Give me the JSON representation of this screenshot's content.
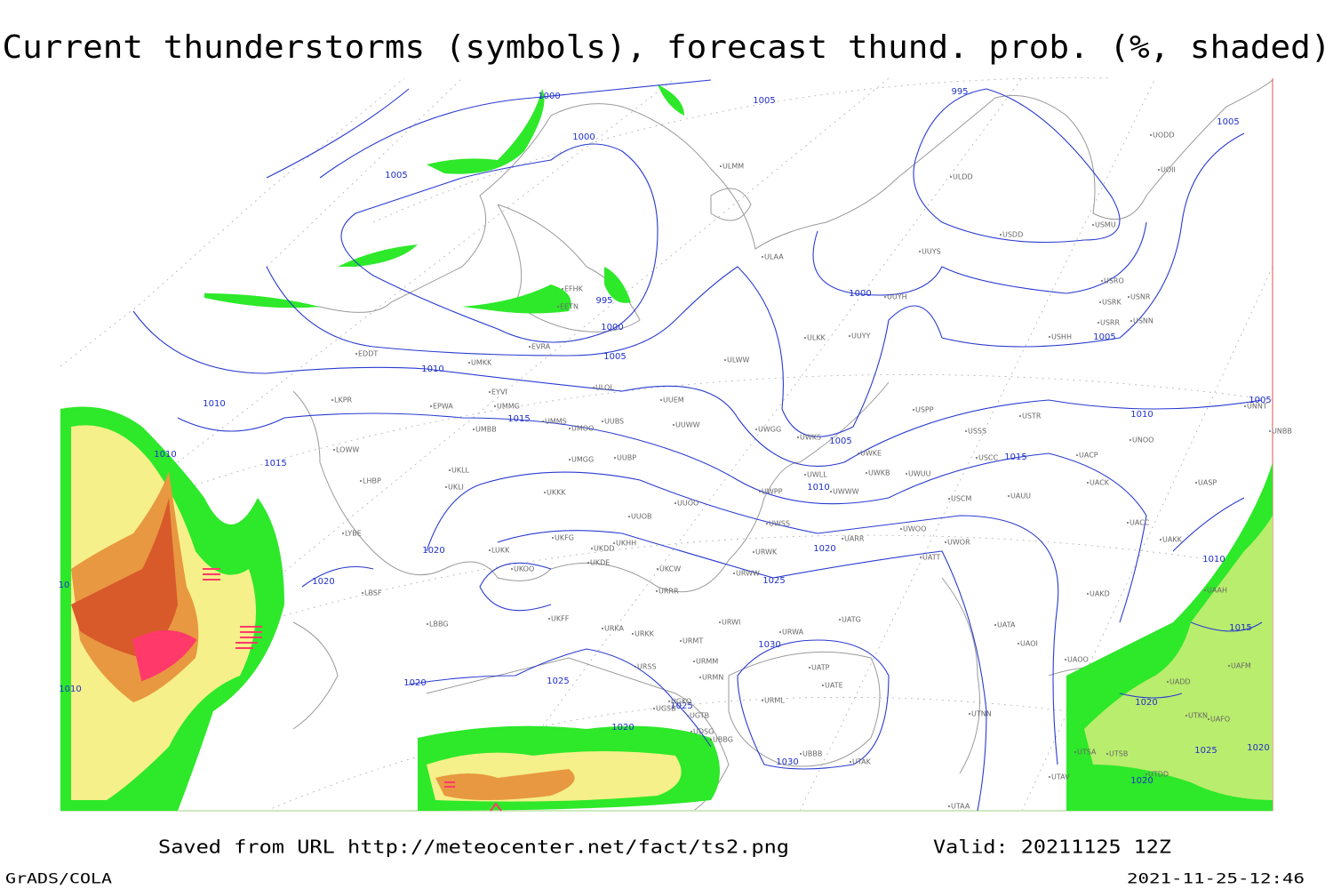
{
  "header": {
    "title": "Current thunderstorms (symbols), forecast thund. prob. (%, shaded)"
  },
  "footer": {
    "source": "Saved from URL http://meteocenter.net/fact/ts2.png",
    "valid": "Valid: 20211125 12Z",
    "software": "GrADS/COLA",
    "timestamp": "2021-11-25-12:46"
  },
  "isobar_labels": [
    "1000",
    "1000",
    "1005",
    "1005",
    "995",
    "1005",
    "995",
    "1000",
    "1005",
    "1000",
    "1005",
    "1010",
    "1010",
    "1010",
    "1015",
    "1015",
    "1005",
    "1010",
    "1015",
    "1005",
    "1010",
    "1020",
    "1020",
    "1020",
    "1025",
    "1010",
    "1015",
    "1030",
    "1020",
    "1025",
    "1025",
    "1020",
    "1020",
    "1030",
    "1025",
    "1020",
    "1020",
    "10",
    "1010"
  ],
  "stations": [
    "ULMM",
    "ULDD",
    "UOII",
    "UODD",
    "USDD",
    "USMU",
    "ULAA",
    "UUYS",
    "USRO",
    "USRK",
    "USNR",
    "UUYH",
    "USRR",
    "USNN",
    "USHH",
    "ULKK",
    "UUYY",
    "ULWW",
    "EDDT",
    "UMKK",
    "EYVI",
    "ULOL",
    "UUEM",
    "LKPR",
    "EPWA",
    "UMMG",
    "UMMS",
    "UUBS",
    "USPP",
    "USTR",
    "UMBB",
    "UMOO",
    "UUWW",
    "UWGG",
    "UWKS",
    "USSS",
    "UNOO",
    "UNBB",
    "UNNT",
    "LOWW",
    "UWKE",
    "UMGG",
    "UUBP",
    "USCC",
    "UACP",
    "UKLL",
    "UWKB",
    "UWUU",
    "UWLL",
    "LHBP",
    "UKLI",
    "UKKK",
    "UWWW",
    "UACK",
    "UASP",
    "UWPP",
    "UUOO",
    "USCM",
    "UAUU",
    "LYBE",
    "UUOB",
    "UWSS",
    "UWOO",
    "UARR",
    "UWOR",
    "UACC",
    "UAKK",
    "UKFG",
    "UKDD",
    "UKHH",
    "LUKK",
    "UATT",
    "UKDE",
    "UKOO",
    "UKCW",
    "URWK",
    "URWW",
    "LBSF",
    "URRR",
    "UAKD",
    "UAAH",
    "LBBG",
    "UKFF",
    "URKA",
    "URWI",
    "UATG",
    "UATA",
    "URKK",
    "URMT",
    "URWA",
    "UAOI",
    "UAOO",
    "UAFM",
    "URSS",
    "URMM",
    "UATP",
    "URMN",
    "UATE",
    "UADD",
    "URML",
    "UGKO",
    "UGSB",
    "UGTB",
    "UTNN",
    "UTKN",
    "UAFO",
    "UDSG",
    "UBBG",
    "UBBB",
    "UTAK",
    "UTSA",
    "UTSB",
    "UTAV",
    "UTDD",
    "UTAA",
    "EFHK",
    "EETN",
    "EVRA"
  ]
}
